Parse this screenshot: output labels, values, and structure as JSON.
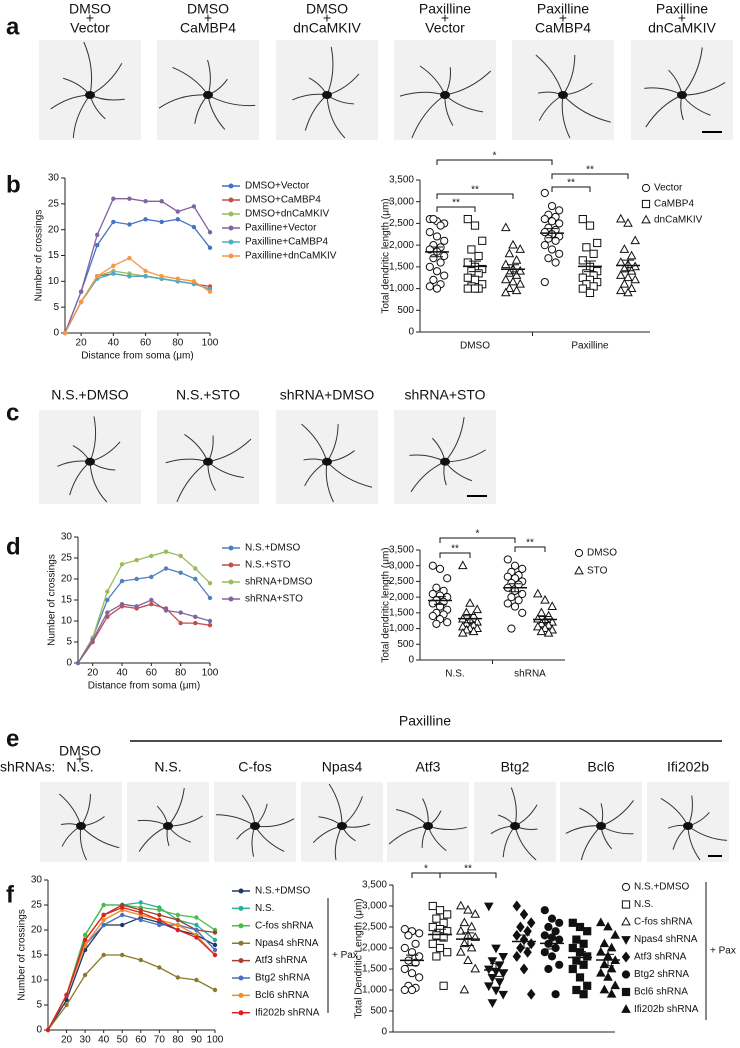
{
  "panel_labels": [
    "a",
    "b",
    "c",
    "d",
    "e",
    "f"
  ],
  "image_labels_a": [
    [
      "DMSO",
      "+",
      "Vector"
    ],
    [
      "DMSO",
      "+",
      "CaMBP4"
    ],
    [
      "DMSO",
      "+",
      "dnCaMKIV"
    ],
    [
      "Paxilline",
      "+",
      "Vector"
    ],
    [
      "Paxilline",
      "+",
      "CaMBP4"
    ],
    [
      "Paxilline",
      "+",
      "dnCaMKIV"
    ]
  ],
  "image_labels_c": [
    "N.S.+DMSO",
    "N.S.+STO",
    "shRNA+DMSO",
    "shRNA+STO"
  ],
  "panel_e": {
    "row_label": "shRNAs:",
    "control": [
      "DMSO",
      "+",
      "N.S."
    ],
    "group_label": "Paxilline",
    "labels": [
      "N.S.",
      "C-fos",
      "Npas4",
      "Atf3",
      "Btg2",
      "Bcl6",
      "Ifi202b"
    ]
  },
  "chart_data": [
    {
      "type": "line",
      "xlabel": "Distance from soma (μm)",
      "ylabel": "Number of crossings",
      "x": [
        10,
        20,
        30,
        40,
        50,
        60,
        70,
        80,
        90,
        100
      ],
      "xlim": [
        10,
        100
      ],
      "xticks": [
        20,
        40,
        60,
        80,
        100
      ],
      "ylim": [
        0,
        30
      ],
      "yticks": [
        0,
        5,
        10,
        15,
        20,
        25,
        30
      ],
      "series": [
        {
          "name": "DMSO+Vector",
          "color": "#4472c4",
          "values": [
            0,
            8,
            17,
            21.5,
            21,
            22,
            21.5,
            22,
            20.5,
            16.5
          ]
        },
        {
          "name": "DMSO+CaMBP4",
          "color": "#c0504d",
          "values": [
            0,
            6,
            11,
            11.5,
            11,
            11,
            10.5,
            10,
            9.5,
            9
          ]
        },
        {
          "name": "DMSO+dnCaMKIV",
          "color": "#9bbb59",
          "values": [
            0,
            6,
            11,
            12,
            11.5,
            11,
            10.5,
            10,
            9.5,
            8.5
          ]
        },
        {
          "name": "Paxilline+Vector",
          "color": "#8064a2",
          "values": [
            0,
            8,
            19,
            26,
            26,
            25.5,
            25.5,
            23.5,
            24.5,
            19.5
          ]
        },
        {
          "name": "Paxilline+CaMBP4",
          "color": "#4bacc6",
          "values": [
            0,
            6,
            10.5,
            11.5,
            11,
            11,
            10.5,
            10,
            9.5,
            8.5
          ]
        },
        {
          "name": "Paxilline+dnCaMKIV",
          "color": "#f79646",
          "values": [
            0,
            6,
            11,
            13,
            14.5,
            12,
            11,
            10.5,
            10,
            8
          ]
        }
      ]
    },
    {
      "type": "dotplot",
      "ylabel": "Total dendritic length (μm)",
      "categories": [
        "DMSO",
        "Paxilline"
      ],
      "ylim": [
        0,
        3500
      ],
      "yticks": [
        0,
        500,
        {
          "value": 1000,
          "label": "1,000"
        },
        {
          "value": 1500,
          "label": "1,500"
        },
        {
          "value": 2000,
          "label": "2,000"
        },
        {
          "value": 2500,
          "label": "2,500"
        },
        {
          "value": 3000,
          "label": "3,000"
        },
        {
          "value": 3500,
          "label": "3,500"
        }
      ],
      "series": [
        {
          "name": "Vector",
          "marker": "circle",
          "values": [
            [
              2600,
              2550,
              2500,
              2600,
              2450,
              2300,
              2200,
              2100,
              2000,
              1950,
              1900,
              1850,
              1750,
              1700,
              1600,
              1500,
              1400,
              1300,
              1200,
              1100,
              1050,
              1000
            ],
            [
              3200,
              2900,
              2800,
              2700,
              2650,
              2600,
              2550,
              2500,
              2400,
              2350,
              2300,
              2250,
              2200,
              2150,
              2100,
              2000,
              1900,
              1800,
              1700,
              1600,
              1150
            ]
          ]
        },
        {
          "name": "CaMBP4",
          "marker": "square",
          "values": [
            [
              2600,
              2450,
              2100,
              1900,
              1750,
              1600,
              1500,
              1450,
              1400,
              1350,
              1250,
              1200,
              1100,
              1050,
              1000,
              1000,
              1000
            ],
            [
              2600,
              2450,
              2050,
              1950,
              1800,
              1650,
              1500,
              1400,
              1350,
              1300,
              1250,
              1200,
              1150,
              1100,
              1050,
              1000,
              900
            ]
          ]
        },
        {
          "name": "dnCaMKIV",
          "marker": "triangle",
          "values": [
            [
              2400,
              2000,
              1900,
              1800,
              1650,
              1550,
              1450,
              1400,
              1350,
              1300,
              1200,
              1150,
              1100,
              1000,
              950,
              900
            ],
            [
              2600,
              2500,
              2100,
              1900,
              1750,
              1600,
              1550,
              1500,
              1450,
              1400,
              1300,
              1250,
              1200,
              1100,
              1000,
              950,
              900
            ]
          ]
        }
      ],
      "annotations": [
        "*",
        "**",
        "**",
        "**",
        "**"
      ]
    },
    {
      "type": "line",
      "xlabel": "Distance from soma (μm)",
      "ylabel": "Number of crossings",
      "x": [
        10,
        20,
        30,
        40,
        50,
        60,
        70,
        80,
        90,
        100
      ],
      "xlim": [
        10,
        100
      ],
      "xticks": [
        20,
        40,
        60,
        80,
        100
      ],
      "ylim": [
        0,
        30
      ],
      "yticks": [
        0,
        5,
        10,
        15,
        20,
        25,
        30
      ],
      "series": [
        {
          "name": "N.S.+DMSO",
          "color": "#4f81bd",
          "values": [
            0,
            6,
            15,
            19.5,
            20,
            20.5,
            22.5,
            21.5,
            20,
            15.5
          ]
        },
        {
          "name": "N.S.+STO",
          "color": "#c0504d",
          "values": [
            0,
            5,
            11,
            13.5,
            13,
            14,
            13,
            9.5,
            9.5,
            9
          ]
        },
        {
          "name": "shRNA+DMSO",
          "color": "#9bbb59",
          "values": [
            0,
            6,
            17,
            23.5,
            24.5,
            25.5,
            26.5,
            25.5,
            22.5,
            19
          ]
        },
        {
          "name": "shRNA+STO",
          "color": "#8064a2",
          "values": [
            0,
            5.5,
            12,
            14,
            13.5,
            15,
            12.5,
            12,
            11,
            10
          ]
        }
      ]
    },
    {
      "type": "dotplot",
      "ylabel": "Total dendritic length (μm)",
      "categories": [
        "N.S.",
        "shRNA"
      ],
      "ylim": [
        0,
        3500
      ],
      "yticks": [
        0,
        500,
        {
          "value": 1000,
          "label": "1,000"
        },
        {
          "value": 1500,
          "label": "1,500"
        },
        {
          "value": 2000,
          "label": "2,000"
        },
        {
          "value": 2500,
          "label": "2,500"
        },
        {
          "value": 3000,
          "label": "3,000"
        },
        {
          "value": 3500,
          "label": "3,500"
        }
      ],
      "series": [
        {
          "name": "DMSO",
          "marker": "circle",
          "values": [
            [
              3000,
              2900,
              2600,
              2300,
              2200,
              2100,
              2050,
              2000,
              1900,
              1850,
              1800,
              1700,
              1600,
              1500,
              1450,
              1400,
              1300,
              1200,
              1150
            ],
            [
              3200,
              3000,
              2900,
              2800,
              2700,
              2650,
              2600,
              2500,
              2450,
              2400,
              2300,
              2200,
              2100,
              2000,
              1900,
              1800,
              1700,
              1500,
              1000
            ]
          ]
        },
        {
          "name": "STO",
          "marker": "triangle",
          "values": [
            [
              3000,
              1800,
              1600,
              1500,
              1400,
              1300,
              1250,
              1200,
              1150,
              1100,
              1050,
              1000,
              1000,
              950,
              900,
              850
            ],
            [
              2100,
              1900,
              1700,
              1500,
              1400,
              1300,
              1250,
              1200,
              1150,
              1100,
              1050,
              1000,
              950,
              900,
              850
            ]
          ]
        }
      ],
      "annotations": [
        "*",
        "**",
        "**"
      ]
    },
    {
      "type": "line",
      "xlabel": "Distance from soma (μm)",
      "ylabel": "Number of crossings",
      "x": [
        10,
        20,
        30,
        40,
        50,
        60,
        70,
        80,
        90,
        100
      ],
      "xlim": [
        10,
        100
      ],
      "xticks": [
        20,
        30,
        40,
        50,
        60,
        70,
        80,
        90,
        100
      ],
      "ylim": [
        0,
        30
      ],
      "yticks": [
        0,
        5,
        10,
        15,
        20,
        25,
        30
      ],
      "legend_note": "+ Pax",
      "series": [
        {
          "name": "N.S.+DMSO",
          "color": "#1f3864",
          "values": [
            0,
            6,
            16,
            21,
            21,
            22.5,
            21.5,
            20,
            19,
            17
          ]
        },
        {
          "name": "N.S.",
          "color": "#2ab09a",
          "values": [
            0,
            7,
            19,
            25,
            25,
            25.5,
            24.5,
            22,
            21,
            18
          ]
        },
        {
          "name": "C-fos shRNA",
          "color": "#4cbb4c",
          "values": [
            0,
            7,
            19,
            25,
            25,
            24.5,
            24,
            23,
            22.5,
            20
          ]
        },
        {
          "name": "Npas4 shRNA",
          "color": "#8a7a2a",
          "values": [
            0,
            5,
            11,
            15,
            15,
            14,
            12.5,
            10.5,
            10,
            8
          ]
        },
        {
          "name": "Atf3 shRNA",
          "color": "#a0402a",
          "values": [
            0,
            7,
            18,
            23,
            25,
            24,
            23,
            22,
            20,
            19.5
          ]
        },
        {
          "name": "Btg2 shRNA",
          "color": "#4a6fc4",
          "values": [
            0,
            7,
            17,
            21,
            23,
            22,
            21,
            21,
            20,
            16
          ]
        },
        {
          "name": "Bcl6 shRNA",
          "color": "#f08a24",
          "values": [
            0,
            7,
            17,
            22,
            24,
            23,
            22,
            21,
            19,
            15
          ]
        },
        {
          "name": "Ifi202b shRNA",
          "color": "#e02020",
          "values": [
            0,
            7,
            18,
            23,
            24.5,
            23.5,
            22,
            20,
            18.5,
            15
          ]
        }
      ]
    },
    {
      "type": "dotplot",
      "ylabel": "Total Dendritic Length (μm)",
      "categories": [
        null
      ],
      "ylim": [
        0,
        3500
      ],
      "yticks": [
        0,
        500,
        {
          "value": 1000,
          "label": "1,000"
        },
        {
          "value": 1500,
          "label": "1,500"
        },
        {
          "value": 2000,
          "label": "2,000"
        },
        {
          "value": 2500,
          "label": "2,500"
        },
        {
          "value": 3000,
          "label": "3,000"
        },
        {
          "value": 3500,
          "label": "3,500"
        }
      ],
      "legend_note": "+ Pax",
      "series": [
        {
          "name": "N.S.+DMSO",
          "marker": "circle",
          "values": [
            [
              2450,
              2400,
              2350,
              2300,
              2100,
              2000,
              1900,
              1800,
              1700,
              1650,
              1500,
              1400,
              1300,
              1100,
              1050,
              1000,
              1000
            ]
          ]
        },
        {
          "name": "N.S.",
          "marker": "square",
          "values": [
            [
              3000,
              2900,
              2800,
              2700,
              2600,
              2500,
              2450,
              2400,
              2300,
              2250,
              2100,
              2000,
              1900,
              1800,
              1100
            ]
          ]
        },
        {
          "name": "C-fos shRNA",
          "marker": "triangle",
          "values": [
            [
              3000,
              2900,
              2800,
              2600,
              2500,
              2400,
              2300,
              2250,
              2100,
              2000,
              1900,
              1700,
              1500,
              1000
            ]
          ]
        },
        {
          "name": "Npas4 shRNA",
          "marker": "triangle-down-filled",
          "values": [
            [
              3000,
              2000,
              1800,
              1700,
              1600,
              1500,
              1450,
              1400,
              1300,
              1200,
              1100,
              1000,
              900,
              700
            ]
          ]
        },
        {
          "name": "Atf3 shRNA",
          "marker": "diamond-filled",
          "values": [
            [
              3000,
              2800,
              2600,
              2500,
              2400,
              2300,
              2200,
              2100,
              2000,
              1900,
              1800,
              1500,
              900
            ]
          ]
        },
        {
          "name": "Btg2 shRNA",
          "marker": "circle-filled",
          "values": [
            [
              2900,
              2700,
              2600,
              2500,
              2400,
              2300,
              2250,
              2200,
              2100,
              2000,
              1900,
              1800,
              1600,
              1500,
              900
            ]
          ]
        },
        {
          "name": "Bcl6 shRNA",
          "marker": "square-filled",
          "values": [
            [
              2600,
              2500,
              2400,
              2200,
              2100,
              2000,
              1900,
              1800,
              1700,
              1600,
              1500,
              1300,
              1100,
              1000,
              900
            ]
          ]
        },
        {
          "name": "Ifi202b shRNA",
          "marker": "triangle-filled",
          "values": [
            [
              2600,
              2500,
              2300,
              2100,
              2000,
              1900,
              1800,
              1700,
              1600,
              1500,
              1400,
              1300,
              1100,
              1000,
              900
            ]
          ]
        }
      ],
      "annotations": [
        "*",
        "**"
      ]
    }
  ]
}
